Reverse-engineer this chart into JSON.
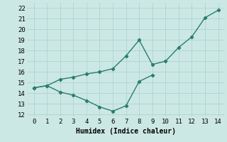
{
  "line1_x": [
    0,
    1,
    2,
    3,
    4,
    5,
    6,
    7,
    8,
    9,
    10,
    11,
    12,
    13,
    14
  ],
  "line1_y": [
    14.5,
    14.7,
    15.3,
    15.5,
    15.8,
    16.0,
    16.3,
    17.5,
    19.0,
    16.7,
    17.0,
    18.3,
    19.3,
    21.1,
    21.8
  ],
  "line2_x": [
    0,
    1,
    2,
    3,
    4,
    5,
    6,
    7,
    8,
    9
  ],
  "line2_y": [
    14.5,
    14.7,
    14.1,
    13.8,
    13.3,
    12.7,
    12.3,
    12.8,
    15.1,
    15.7
  ],
  "line_color": "#2a7d6e",
  "bg_color": "#cce8e4",
  "grid_color": "#aed4cf",
  "xlabel": "Humidex (Indice chaleur)",
  "xlim": [
    -0.5,
    14.5
  ],
  "ylim": [
    11.8,
    22.5
  ],
  "yticks": [
    12,
    13,
    14,
    15,
    16,
    17,
    18,
    19,
    20,
    21,
    22
  ],
  "xticks": [
    0,
    1,
    2,
    3,
    4,
    5,
    6,
    7,
    8,
    9,
    10,
    11,
    12,
    13,
    14
  ],
  "marker": "D",
  "markersize": 2.2,
  "linewidth": 1.0,
  "xlabel_fontsize": 7,
  "tick_fontsize": 6.5,
  "font_family": "monospace"
}
